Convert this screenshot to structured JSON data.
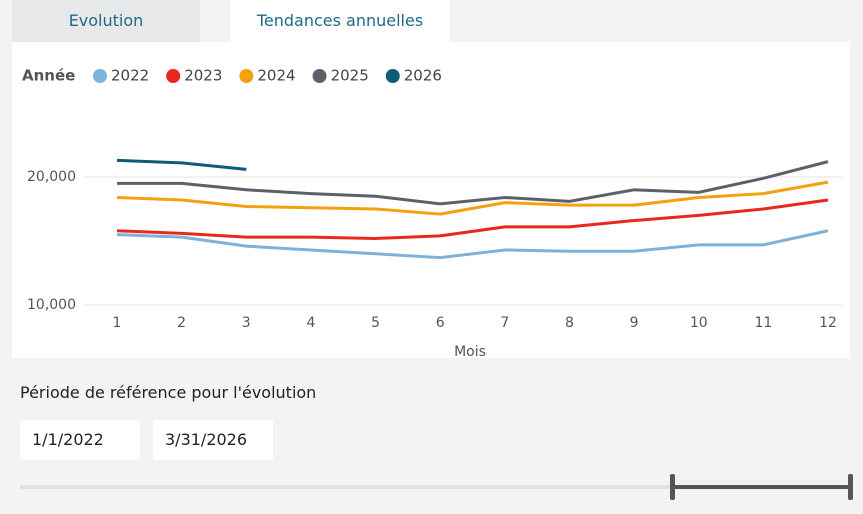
{
  "tabs": [
    "Evolution",
    "Tendances annuelles"
  ],
  "chart_data": {
    "type": "line",
    "legend_title": "Année",
    "xlabel": "Mois",
    "x": [
      1,
      2,
      3,
      4,
      5,
      6,
      7,
      8,
      9,
      10,
      11,
      12
    ],
    "xlim": [
      1,
      12
    ],
    "xticks": [
      1,
      2,
      3,
      4,
      5,
      6,
      7,
      8,
      9,
      10,
      11,
      12
    ],
    "ylim": [
      10000,
      25000
    ],
    "yticks": [
      {
        "value": 10000,
        "label": "10,000"
      },
      {
        "value": 20000,
        "label": "20,000"
      }
    ],
    "grid": true,
    "series": [
      {
        "name": "2022",
        "color": "#7fb2d9",
        "values": [
          15500,
          15300,
          14600,
          14300,
          14000,
          13700,
          14300,
          14200,
          14200,
          14700,
          14700,
          15800
        ]
      },
      {
        "name": "2023",
        "color": "#e8281e",
        "values": [
          15800,
          15600,
          15300,
          15300,
          15200,
          15400,
          16100,
          16100,
          16600,
          17000,
          17500,
          18200
        ]
      },
      {
        "name": "2024",
        "color": "#f5a10f",
        "values": [
          18400,
          18200,
          17700,
          17600,
          17500,
          17100,
          18000,
          17800,
          17800,
          18400,
          18700,
          19600
        ]
      },
      {
        "name": "2025",
        "color": "#5b616b",
        "values": [
          19500,
          19500,
          19000,
          18700,
          18500,
          17900,
          18400,
          18100,
          19000,
          18800,
          19900,
          21200
        ]
      },
      {
        "name": "2026",
        "color": "#0f5a78",
        "values": [
          21300,
          21100,
          20600,
          null,
          null,
          null,
          null,
          null,
          null,
          null,
          null,
          null
        ]
      }
    ]
  },
  "period": {
    "label": "Période de référence pour l'évolution",
    "start": "1/1/2022",
    "end": "3/31/2026"
  }
}
